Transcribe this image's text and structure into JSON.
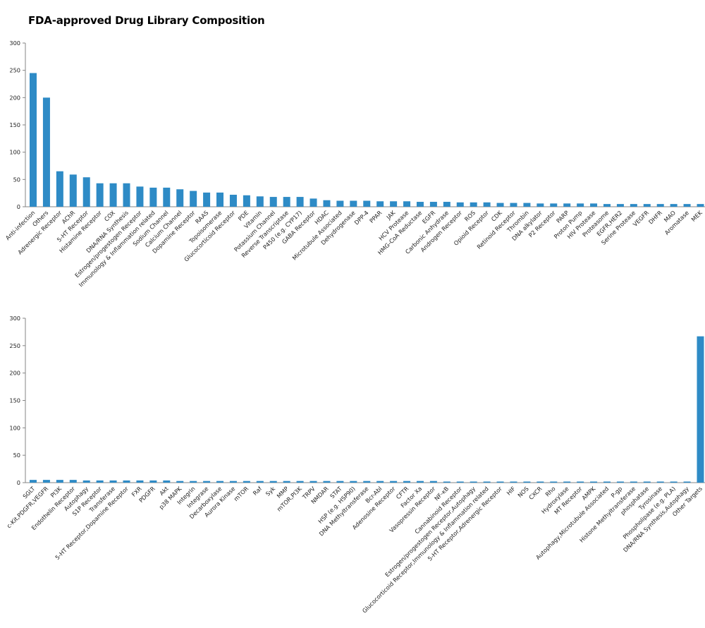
{
  "chart_data": [
    {
      "type": "bar",
      "title": "FDA-approved Drug Library Composition",
      "xlabel": "",
      "ylabel": "",
      "ylim": [
        0,
        300
      ],
      "yticks": [
        0,
        50,
        100,
        150,
        200,
        250,
        300
      ],
      "grid": false,
      "bar_color": "#2e8bc6",
      "categories": [
        "Anti-infection",
        "Others",
        "Adrenergic Receptor",
        "AChR",
        "5-HT Receptor",
        "Histamine Receptor",
        "COX",
        "DNA/RNA Synthesis",
        "Estrogen/progestogen Receptor",
        "Immunology & Inflammation related",
        "Sodium Channel",
        "Calcium Channel",
        "Dopamine Receptor",
        "RAAS",
        "Topoisomerase",
        "Glucocorticoid Receptor",
        "PDE",
        "Vitamin",
        "Potassium Channel",
        "Reverse Transcriptase",
        "P450 (e.g. CYP17)",
        "GABA Receptor",
        "HDAC",
        "Microtubule Associated",
        "Dehydrogenase",
        "DPP-4",
        "PPAR",
        "JAK",
        "HCV Protease",
        "HMG-CoA Reductase",
        "EGFR",
        "Carbonic Anhydrase",
        "Androgen Receptor",
        "ROS",
        "Opioid Receptor",
        "CDK",
        "Retinoid Receptor",
        "Thrombin",
        "DNA alkylator",
        "P2 Receptor",
        "PARP",
        "Proton Pump",
        "HIV Protease",
        "Proteasome",
        "EGFR,HER2",
        "Serine Protease",
        "VEGFR",
        "DHFR",
        "MAO",
        "Aromatase",
        "MEK"
      ],
      "values": [
        245,
        200,
        65,
        59,
        54,
        43,
        43,
        43,
        37,
        35,
        35,
        32,
        29,
        26,
        26,
        22,
        21,
        19,
        18,
        18,
        18,
        15,
        12,
        11,
        11,
        11,
        10,
        10,
        10,
        9,
        9,
        9,
        8,
        8,
        8,
        7,
        7,
        7,
        6,
        6,
        6,
        6,
        6,
        5,
        5,
        5,
        5,
        5,
        5,
        5,
        5
      ]
    },
    {
      "type": "bar",
      "title": "",
      "xlabel": "",
      "ylabel": "",
      "ylim": [
        0,
        300
      ],
      "yticks": [
        0,
        50,
        100,
        150,
        200,
        250,
        300
      ],
      "grid": false,
      "bar_color": "#2e8bc6",
      "categories": [
        "SGLT",
        "c-Kit,PDGFR,VEGFR",
        "PI3K",
        "Endothelin Receptor",
        "Autophagy",
        "S1P Receptor",
        "Transferase",
        "5-HT Receptor,Dopamine Receptor",
        "FXR",
        "PDGFR",
        "Akt",
        "p38 MAPK",
        "Integrin",
        "Integrase",
        "Decarboxylase",
        "Aurora Kinase",
        "mTOR",
        "Raf",
        "Syk",
        "MMP",
        "mTOR,PI3K",
        "TRPV",
        "NMDAR",
        "STAT",
        "HSP (e.g. HSP90)",
        "DNA Methyltransferase",
        "Bcr-Abl",
        "Adenosine Receptor",
        "CFTR",
        "Factor Xa",
        "Vasopressin Receptor",
        "NF-κB",
        "Cannabinoid Receptor",
        "Estrogen/progestogen Receptor,Autophagy",
        "Glucocorticoid Receptor,Immunology & Inflammation related",
        "5-HT Receptor,Adrenergic Receptor",
        "HIF",
        "NOS",
        "CXCR",
        "Rho",
        "Hydroxylase",
        "MT Receptor",
        "AMPK",
        "Autophagy,Microtubule Associated",
        "P-gp",
        "Histone Methyltransferase",
        "phosphatase",
        "Tyrosinase",
        "Phospholipase (e.g. PLA)",
        "DNA/RNA Synthesis,Autophagy",
        "Other Targets"
      ],
      "values": [
        5,
        5,
        5,
        5,
        4,
        4,
        4,
        4,
        4,
        4,
        4,
        3,
        3,
        3,
        3,
        3,
        3,
        3,
        3,
        3,
        3,
        3,
        3,
        3,
        3,
        3,
        3,
        3,
        3,
        3,
        3,
        2,
        2,
        2,
        2,
        2,
        2,
        2,
        2,
        2,
        2,
        2,
        2,
        2,
        2,
        2,
        2,
        2,
        2,
        2,
        267
      ]
    }
  ]
}
